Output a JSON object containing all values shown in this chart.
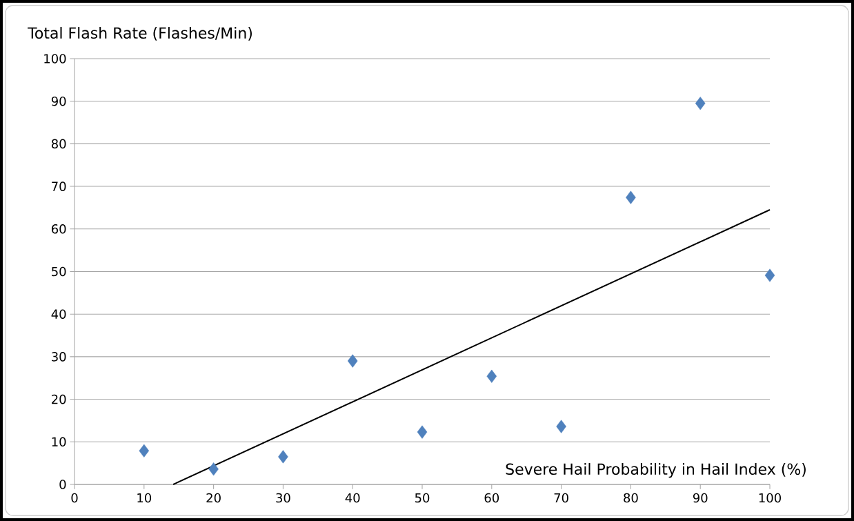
{
  "chart_data": {
    "type": "scatter",
    "ylabel": "Total Flash Rate (Flashes/Min)",
    "xlabel": "Severe Hail Probability in Hail Index (%)",
    "xlim": [
      0,
      100
    ],
    "xticks": [
      0,
      10,
      20,
      30,
      40,
      50,
      60,
      70,
      80,
      90,
      100
    ],
    "ylim": [
      0,
      100
    ],
    "yticks": [
      0,
      10,
      20,
      30,
      40,
      50,
      60,
      70,
      80,
      90,
      100
    ],
    "grid": "y",
    "marker": "diamond",
    "series": [
      {
        "color": "#4f81bd",
        "x": [
          10,
          20,
          30,
          40,
          50,
          60,
          70,
          80,
          90,
          100
        ],
        "values": [
          7.9,
          3.6,
          6.5,
          29,
          12.3,
          25.4,
          13.6,
          67.4,
          89.5,
          49.1
        ]
      },
      {
        "type": "line",
        "color": "#000000",
        "marker": "none",
        "line_style": "solid",
        "x": [
          14.2,
          100
        ],
        "values": [
          0,
          64.5
        ]
      }
    ]
  }
}
